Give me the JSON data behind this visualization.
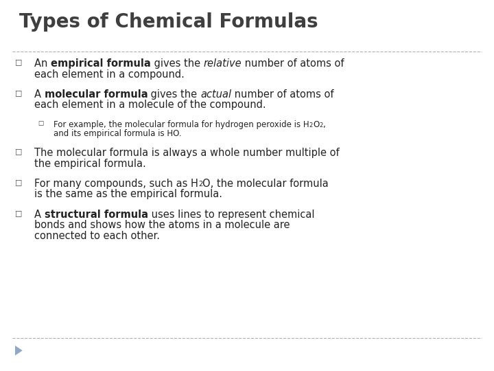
{
  "title": "Types of Chemical Formulas",
  "title_color": "#3f3f3f",
  "title_fontsize": 20,
  "background_color": "#ffffff",
  "divider_color": "#b0b0b0",
  "bullet_color": "#444444",
  "text_color": "#222222",
  "body_fontsize": 10.5,
  "sub_fontsize": 8.5,
  "arrow_color": "#8fa8c8",
  "footer_line_color": "#b0b0b0",
  "items": [
    {
      "type": "main",
      "indent": 0,
      "lines": [
        [
          {
            "text": "An ",
            "bold": false,
            "italic": false,
            "sub": false
          },
          {
            "text": "empirical formula",
            "bold": true,
            "italic": false,
            "sub": false
          },
          {
            "text": " gives the ",
            "bold": false,
            "italic": false,
            "sub": false
          },
          {
            "text": "relative",
            "bold": false,
            "italic": true,
            "sub": false
          },
          {
            "text": " number of atoms of",
            "bold": false,
            "italic": false,
            "sub": false
          }
        ],
        [
          {
            "text": "each element in a compound.",
            "bold": false,
            "italic": false,
            "sub": false
          }
        ]
      ]
    },
    {
      "type": "main",
      "indent": 0,
      "lines": [
        [
          {
            "text": "A ",
            "bold": false,
            "italic": false,
            "sub": false
          },
          {
            "text": "molecular formula",
            "bold": true,
            "italic": false,
            "sub": false
          },
          {
            "text": " gives the ",
            "bold": false,
            "italic": false,
            "sub": false
          },
          {
            "text": "actual",
            "bold": false,
            "italic": true,
            "sub": false
          },
          {
            "text": " number of atoms of",
            "bold": false,
            "italic": false,
            "sub": false
          }
        ],
        [
          {
            "text": "each element in a molecule of the compound.",
            "bold": false,
            "italic": false,
            "sub": false
          }
        ]
      ]
    },
    {
      "type": "sub",
      "indent": 1,
      "lines": [
        [
          {
            "text": "For example, the molecular formula for hydrogen peroxide is H",
            "bold": false,
            "italic": false,
            "sub": false
          },
          {
            "text": "2",
            "bold": false,
            "italic": false,
            "sub": true
          },
          {
            "text": "O",
            "bold": false,
            "italic": false,
            "sub": false
          },
          {
            "text": "2",
            "bold": false,
            "italic": false,
            "sub": true
          },
          {
            "text": ",",
            "bold": false,
            "italic": false,
            "sub": false
          }
        ],
        [
          {
            "text": "and its empirical formula is HO.",
            "bold": false,
            "italic": false,
            "sub": false
          }
        ]
      ]
    },
    {
      "type": "main",
      "indent": 0,
      "lines": [
        [
          {
            "text": "The molecular formula is always a whole number multiple of",
            "bold": false,
            "italic": false,
            "sub": false
          }
        ],
        [
          {
            "text": "the empirical formula.",
            "bold": false,
            "italic": false,
            "sub": false
          }
        ]
      ]
    },
    {
      "type": "main",
      "indent": 0,
      "lines": [
        [
          {
            "text": "For many compounds, such as H",
            "bold": false,
            "italic": false,
            "sub": false
          },
          {
            "text": "2",
            "bold": false,
            "italic": false,
            "sub": true
          },
          {
            "text": "O, the molecular formula",
            "bold": false,
            "italic": false,
            "sub": false
          }
        ],
        [
          {
            "text": "is the same as the empirical formula.",
            "bold": false,
            "italic": false,
            "sub": false
          }
        ]
      ]
    },
    {
      "type": "main",
      "indent": 0,
      "lines": [
        [
          {
            "text": "A ",
            "bold": false,
            "italic": false,
            "sub": false
          },
          {
            "text": "structural formula",
            "bold": true,
            "italic": false,
            "sub": false
          },
          {
            "text": " uses lines to represent chemical",
            "bold": false,
            "italic": false,
            "sub": false
          }
        ],
        [
          {
            "text": "bonds and shows how the atoms in a molecule are",
            "bold": false,
            "italic": false,
            "sub": false
          }
        ],
        [
          {
            "text": "connected to each other.",
            "bold": false,
            "italic": false,
            "sub": false
          }
        ]
      ]
    }
  ]
}
